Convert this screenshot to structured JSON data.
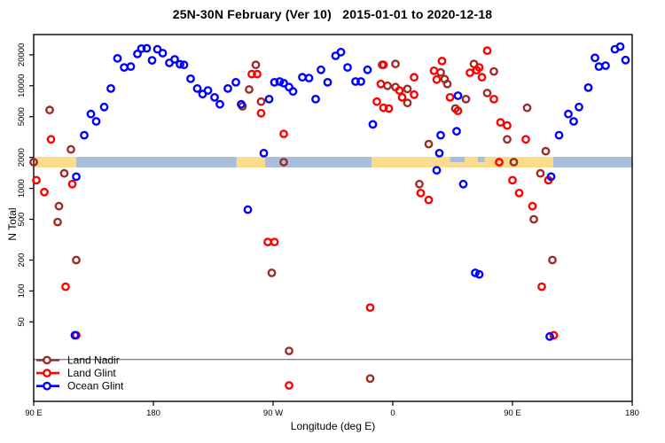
{
  "title": "25N-30N February (Ver 10)   2015-01-01 to 2020-12-18",
  "chart_data": {
    "type": "scatter",
    "title": "25N-30N February (Ver 10)   2015-01-01 to 2020-12-18",
    "xlabel": "Longitude (deg E)",
    "ylabel": "N Total",
    "x_axis": {
      "note": "wrapped longitude axis spanning 450 degrees",
      "range_deg": [
        90,
        540
      ],
      "ticks": [
        {
          "deg": 90,
          "label": "90 E"
        },
        {
          "deg": 180,
          "label": "180"
        },
        {
          "deg": 270,
          "label": "90 W"
        },
        {
          "deg": 360,
          "label": "0"
        },
        {
          "deg": 450,
          "label": "90 E"
        },
        {
          "deg": 540,
          "label": "180"
        }
      ]
    },
    "y_axis": {
      "scale": "log10",
      "tick_values": [
        50,
        100,
        200,
        500,
        1000,
        2000,
        5000,
        10000,
        20000
      ],
      "approx_range": [
        20,
        30000
      ]
    },
    "ref_line": {
      "n": 21.5,
      "color": "#555555"
    },
    "coastline_band": {
      "n_top": 2030,
      "n_bottom": 1600,
      "land_color": "#fadc8c",
      "ocean_color": "#a8bedb",
      "segments": [
        {
          "from": 90,
          "to": 122,
          "surface": "land"
        },
        {
          "from": 122,
          "to": 242.5,
          "surface": "ocean"
        },
        {
          "from": 242.5,
          "to": 264,
          "surface": "land"
        },
        {
          "from": 264,
          "to": 344,
          "surface": "ocean"
        },
        {
          "from": 344,
          "to": 480.5,
          "surface": "land"
        },
        {
          "from": 480.5,
          "to": 540,
          "surface": "ocean"
        }
      ],
      "ocean_inlets_upper_half": [
        {
          "from": 403,
          "to": 414
        },
        {
          "from": 424,
          "to": 429
        }
      ]
    },
    "series": [
      {
        "name": "Land Nadir",
        "color": "#9f2b27",
        "marker": "open-circle",
        "points": [
          [
            102,
            5800
          ],
          [
            118,
            2400
          ],
          [
            90,
            1800
          ],
          [
            113,
            1400
          ],
          [
            109,
            670
          ],
          [
            108,
            470
          ],
          [
            122,
            200
          ],
          [
            257,
            16000
          ],
          [
            252,
            9200
          ],
          [
            247,
            6300
          ],
          [
            261,
            7000
          ],
          [
            278,
            1800
          ],
          [
            269,
            150
          ],
          [
            282,
            26
          ],
          [
            343,
            14
          ],
          [
            352,
            16000
          ],
          [
            362,
            16300
          ],
          [
            356,
            10000
          ],
          [
            362,
            9700
          ],
          [
            371,
            9300
          ],
          [
            371,
            6800
          ],
          [
            396,
            13500
          ],
          [
            399,
            11600
          ],
          [
            401,
            10400
          ],
          [
            415,
            7400
          ],
          [
            407,
            6000
          ],
          [
            421,
            16300
          ],
          [
            431,
            8500
          ],
          [
            436,
            13800
          ],
          [
            387,
            2700
          ],
          [
            380,
            1100
          ],
          [
            451,
            1800
          ],
          [
            471,
            1400
          ],
          [
            466,
            500
          ],
          [
            480,
            200
          ],
          [
            461,
            6100
          ],
          [
            446,
            3000
          ],
          [
            475,
            2300
          ]
        ]
      },
      {
        "name": "Land Glint",
        "color": "#ff0000",
        "marker": "open-circle",
        "points": [
          [
            103,
            3000
          ],
          [
            92,
            1200
          ],
          [
            119,
            1100
          ],
          [
            98,
            920
          ],
          [
            114,
            110
          ],
          [
            122,
            37
          ],
          [
            254,
            13000
          ],
          [
            258,
            13000
          ],
          [
            261,
            5400
          ],
          [
            278,
            3400
          ],
          [
            266,
            300
          ],
          [
            271,
            300
          ],
          [
            282,
            12
          ],
          [
            353,
            16000
          ],
          [
            351,
            10400
          ],
          [
            376,
            12100
          ],
          [
            365,
            9000
          ],
          [
            367,
            7700
          ],
          [
            376,
            8200
          ],
          [
            348,
            7000
          ],
          [
            353,
            6100
          ],
          [
            357,
            6000
          ],
          [
            391,
            14000
          ],
          [
            397,
            17400
          ],
          [
            393,
            11500
          ],
          [
            403,
            7700
          ],
          [
            409,
            5700
          ],
          [
            418,
            13400
          ],
          [
            425,
            15100
          ],
          [
            423,
            14200
          ],
          [
            427,
            12100
          ],
          [
            431,
            22000
          ],
          [
            436,
            7400
          ],
          [
            440,
            1800
          ],
          [
            450,
            1200
          ],
          [
            455,
            900
          ],
          [
            465,
            670
          ],
          [
            472,
            110
          ],
          [
            477,
            1200
          ],
          [
            460,
            3000
          ],
          [
            441,
            4400
          ],
          [
            446,
            4100
          ],
          [
            481,
            37
          ],
          [
            343,
            69
          ],
          [
            381,
            900
          ],
          [
            387,
            770
          ]
        ]
      },
      {
        "name": "Ocean Glint",
        "color": "#0000ff",
        "marker": "open-circle",
        "points": [
          [
            153,
            18500
          ],
          [
            158,
            15100
          ],
          [
            163,
            15400
          ],
          [
            168,
            20400
          ],
          [
            171,
            23000
          ],
          [
            175,
            23200
          ],
          [
            179,
            17700
          ],
          [
            183,
            22700
          ],
          [
            187,
            20800
          ],
          [
            192,
            16700
          ],
          [
            196,
            18100
          ],
          [
            200,
            16200
          ],
          [
            203,
            16000
          ],
          [
            208,
            11700
          ],
          [
            213,
            9400
          ],
          [
            217,
            8300
          ],
          [
            221,
            9000
          ],
          [
            226,
            7700
          ],
          [
            230,
            6600
          ],
          [
            236,
            9400
          ],
          [
            242,
            10800
          ],
          [
            246,
            6600
          ],
          [
            148,
            9400
          ],
          [
            143,
            6200
          ],
          [
            133,
            5300
          ],
          [
            137,
            4500
          ],
          [
            128,
            3300
          ],
          [
            122,
            1300
          ],
          [
            267,
            7400
          ],
          [
            271,
            10800
          ],
          [
            275,
            11000
          ],
          [
            278,
            10600
          ],
          [
            282,
            9700
          ],
          [
            285,
            8800
          ],
          [
            292,
            12100
          ],
          [
            297,
            11900
          ],
          [
            306,
            14300
          ],
          [
            311,
            10800
          ],
          [
            302,
            7400
          ],
          [
            317,
            19600
          ],
          [
            321,
            21300
          ],
          [
            326,
            15100
          ],
          [
            332,
            11000
          ],
          [
            336,
            11000
          ],
          [
            341,
            14300
          ],
          [
            345,
            4200
          ],
          [
            263,
            2200
          ],
          [
            251,
            620
          ],
          [
            409,
            8000
          ],
          [
            408,
            3600
          ],
          [
            396,
            3300
          ],
          [
            395,
            2200
          ],
          [
            393,
            1500
          ],
          [
            413,
            1100
          ],
          [
            479,
            1300
          ],
          [
            492,
            5300
          ],
          [
            496,
            4500
          ],
          [
            500,
            6200
          ],
          [
            507,
            9600
          ],
          [
            485,
            3300
          ],
          [
            512,
            18700
          ],
          [
            515,
            15400
          ],
          [
            520,
            15700
          ],
          [
            527,
            22700
          ],
          [
            531,
            24100
          ],
          [
            535,
            17800
          ],
          [
            422,
            150
          ],
          [
            425,
            145
          ],
          [
            478,
            36
          ],
          [
            121,
            37
          ]
        ]
      }
    ],
    "legend": {
      "position": "bottom-left",
      "entries": [
        "Land Nadir",
        "Land Glint",
        "Ocean Glint"
      ]
    }
  }
}
